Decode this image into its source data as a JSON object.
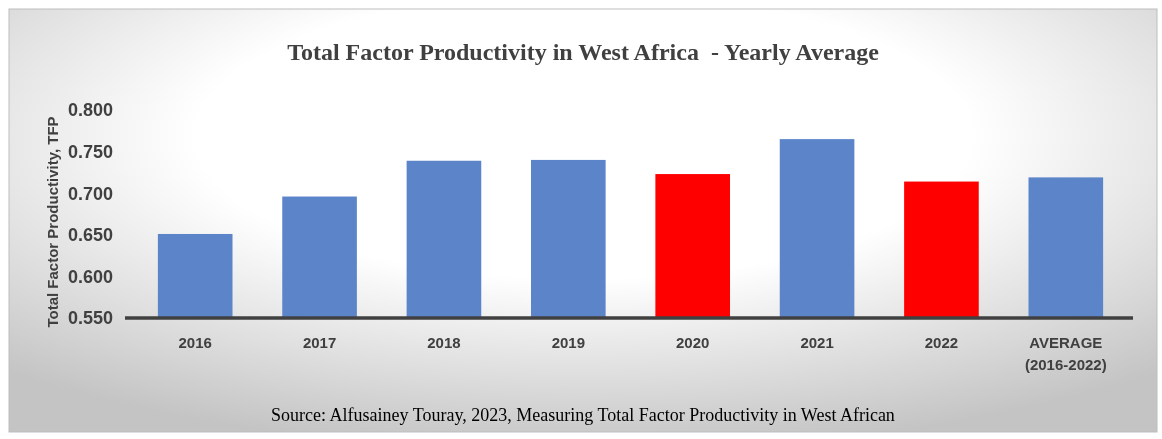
{
  "chart_data": {
    "type": "bar",
    "title": "Total Factor Productivity in West Africa  - Yearly Average",
    "ylabel": "Total Factor Productivity, TFP",
    "categories": [
      "2016",
      "2017",
      "2018",
      "2019",
      "2020",
      "2021",
      "2022",
      "AVERAGE (2016-2022)"
    ],
    "values": [
      0.651,
      0.696,
      0.739,
      0.74,
      0.723,
      0.765,
      0.714,
      0.719
    ],
    "colors": [
      "#5b84c9",
      "#5b84c9",
      "#5b84c9",
      "#5b84c9",
      "#ff0000",
      "#5b84c9",
      "#ff0000",
      "#5b84c9"
    ],
    "ylim": [
      0.55,
      0.8
    ],
    "yticks": [
      {
        "value": 0.55,
        "label": "0.550"
      },
      {
        "value": 0.6,
        "label": "0.600"
      },
      {
        "value": 0.65,
        "label": "0.650"
      },
      {
        "value": 0.7,
        "label": "0.700"
      },
      {
        "value": 0.75,
        "label": "0.750"
      },
      {
        "value": 0.8,
        "label": "0.800"
      }
    ],
    "grid": false,
    "annotations": [
      "Source: Alfusainey Touray, 2023, Measuring Total Factor Productivity in West African"
    ]
  }
}
